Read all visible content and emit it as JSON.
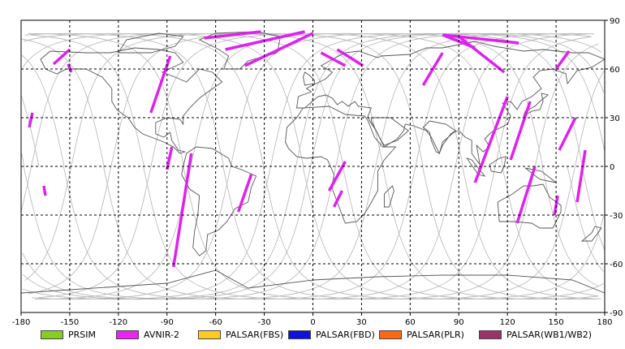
{
  "chart_data": {
    "type": "map",
    "projection": "equirectangular",
    "xlim": [
      -180,
      180
    ],
    "ylim": [
      -90,
      90
    ],
    "x_ticks": [
      -180,
      -150,
      -120,
      -90,
      -60,
      -30,
      0,
      30,
      60,
      90,
      120,
      150,
      180
    ],
    "y_ticks": [
      90,
      60,
      30,
      0,
      -30,
      -60,
      -90
    ],
    "grid": true,
    "grid_style": "dashed",
    "orbit_color": "#b4b4b4",
    "coast_color": "#555555",
    "swath_color": "#dd22ee",
    "legend": [
      {
        "label": "PRSIM",
        "color": "#88cc22"
      },
      {
        "label": "AVNIR-2",
        "color": "#ee22ee"
      },
      {
        "label": "PALSAR(FBS)",
        "color": "#ffcc22"
      },
      {
        "label": "PALSAR(FBD)",
        "color": "#1111dd"
      },
      {
        "label": "PALSAR(PLR)",
        "color": "#ff6611"
      },
      {
        "label": "PALSAR(WB1/WB2)",
        "color": "#993366"
      }
    ],
    "swaths": [
      [
        [
          -173,
          33
        ],
        [
          -175,
          24
        ]
      ],
      [
        [
          -150,
          72
        ],
        [
          -160,
          63
        ]
      ],
      [
        [
          -151,
          63
        ],
        [
          -149,
          58
        ]
      ],
      [
        [
          -88,
          68
        ],
        [
          -100,
          33
        ]
      ],
      [
        [
          -87,
          12
        ],
        [
          -90,
          -2
        ]
      ],
      [
        [
          -67,
          79
        ],
        [
          -32,
          83
        ]
      ],
      [
        [
          -54,
          72
        ],
        [
          -5,
          83
        ]
      ],
      [
        [
          -42,
          62
        ],
        [
          0,
          82
        ]
      ],
      [
        [
          -75,
          8
        ],
        [
          -86,
          -62
        ]
      ],
      [
        [
          -38,
          -5
        ],
        [
          -46,
          -28
        ]
      ],
      [
        [
          20,
          62
        ],
        [
          5,
          70
        ]
      ],
      [
        [
          31,
          62
        ],
        [
          15,
          72
        ]
      ],
      [
        [
          20,
          3
        ],
        [
          10,
          -15
        ]
      ],
      [
        [
          18,
          -15
        ],
        [
          13,
          -25
        ]
      ],
      [
        [
          68,
          50
        ],
        [
          80,
          70
        ]
      ],
      [
        [
          100,
          73
        ],
        [
          80,
          81
        ]
      ],
      [
        [
          118,
          58
        ],
        [
          90,
          80
        ]
      ],
      [
        [
          127,
          76
        ],
        [
          80,
          81
        ]
      ],
      [
        [
          120,
          43
        ],
        [
          100,
          -10
        ]
      ],
      [
        [
          134,
          40
        ],
        [
          122,
          4
        ]
      ],
      [
        [
          137,
          0
        ],
        [
          126,
          -35
        ]
      ],
      [
        [
          158,
          71
        ],
        [
          150,
          60
        ]
      ],
      [
        [
          162,
          30
        ],
        [
          152,
          10
        ]
      ],
      [
        [
          168,
          10
        ],
        [
          163,
          -22
        ]
      ],
      [
        [
          151,
          -18
        ],
        [
          149,
          -30
        ]
      ],
      [
        [
          -166,
          -12
        ],
        [
          -165,
          -18
        ]
      ]
    ]
  }
}
